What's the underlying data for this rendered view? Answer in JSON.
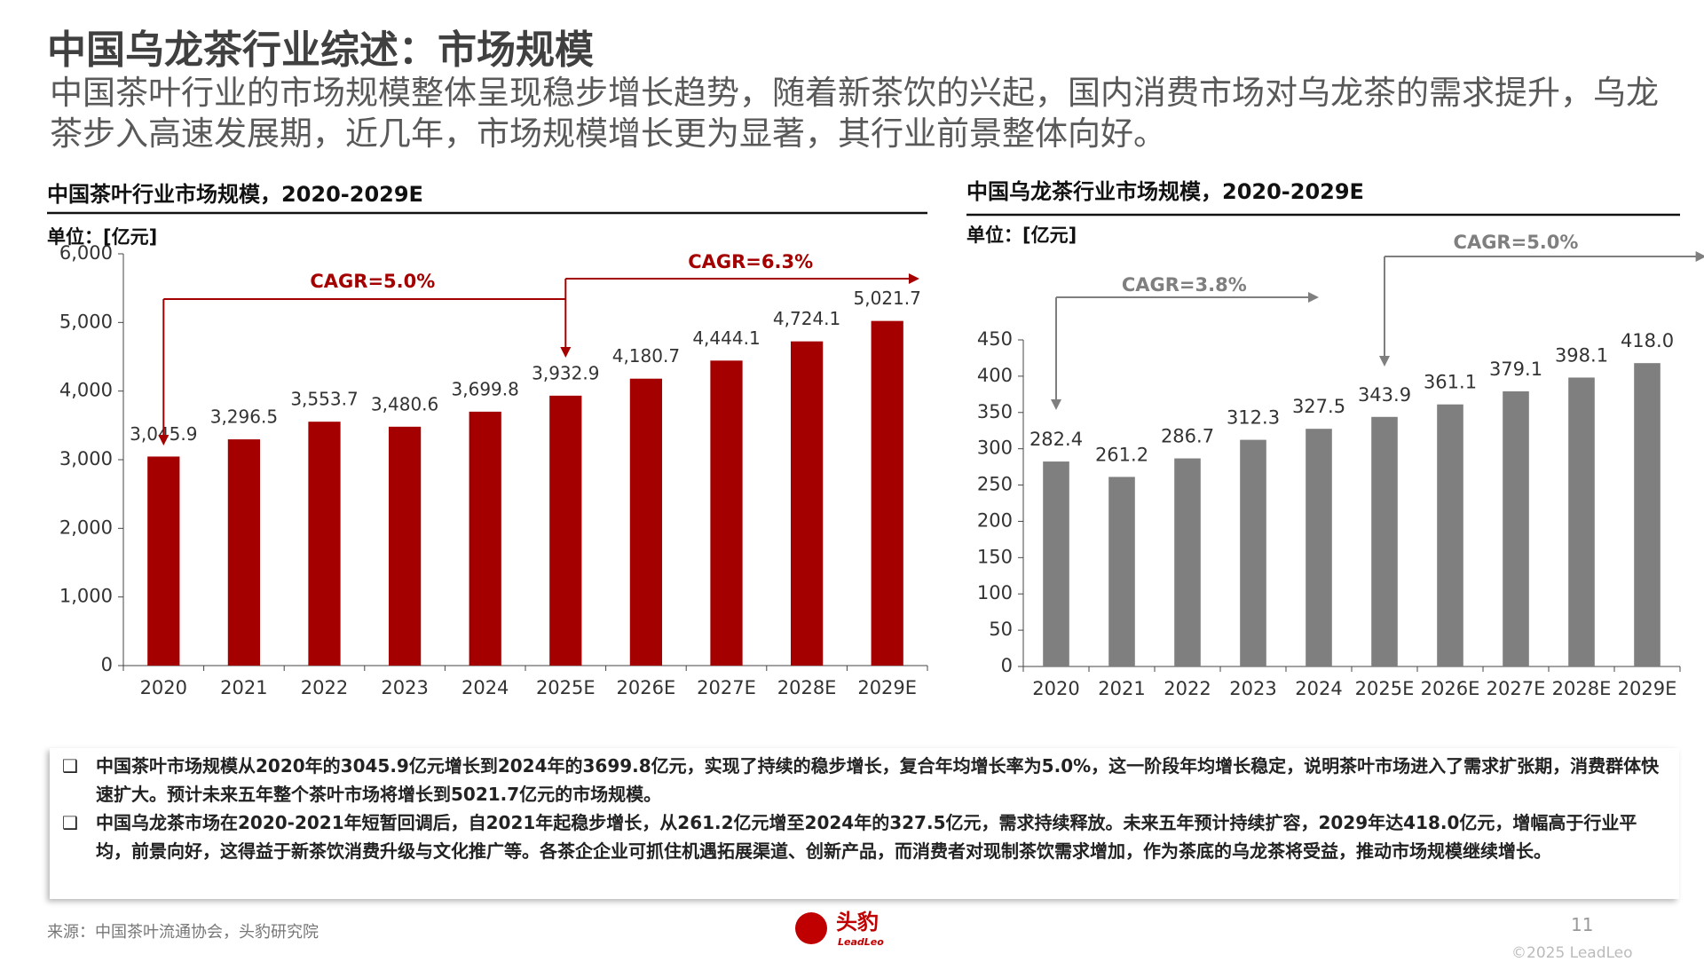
{
  "header": {
    "title": "中国乌龙茶行业综述：市场规模",
    "subtitle": "中国茶叶行业的市场规模整体呈现稳步增长趋势，随着新茶饮的兴起，国内消费市场对乌龙茶的需求提升，乌龙茶步入高速发展期，近几年，市场规模增长更为显著，其行业前景整体向好。"
  },
  "chart_data": [
    {
      "type": "bar",
      "title": "中国茶叶行业市场规模，2020-2029E",
      "unit": "单位：[亿元]",
      "categories": [
        "2020",
        "2021",
        "2022",
        "2023",
        "2024",
        "2025E",
        "2026E",
        "2027E",
        "2028E",
        "2029E"
      ],
      "values": [
        3045.9,
        3296.5,
        3553.7,
        3480.6,
        3699.8,
        3932.9,
        4180.7,
        4444.1,
        4724.1,
        5021.7
      ],
      "value_labels": [
        "3,045.9",
        "3,296.5",
        "3,553.7",
        "3,480.6",
        "3,699.8",
        "3,932.9",
        "4,180.7",
        "4,444.1",
        "4,724.1",
        "5,021.7"
      ],
      "color": "#a50000",
      "ylim": [
        0,
        6000
      ],
      "yticks": [
        0,
        {
          "value": 1000,
          "label": "1,000"
        },
        {
          "value": 2000,
          "label": "2,000"
        },
        {
          "value": 3000,
          "label": "3,000"
        },
        {
          "value": 4000,
          "label": "4,000"
        },
        {
          "value": 5000,
          "label": "5,000"
        },
        {
          "value": 6000,
          "label": "6,000"
        }
      ],
      "annotations": [
        "CAGR=5.0%",
        "CAGR=6.3%"
      ]
    },
    {
      "type": "bar",
      "title": "中国乌龙茶行业市场规模，2020-2029E",
      "unit": "单位：[亿元]",
      "categories": [
        "2020",
        "2021",
        "2022",
        "2023",
        "2024",
        "2025E",
        "2026E",
        "2027E",
        "2028E",
        "2029E"
      ],
      "values": [
        282.4,
        261.2,
        286.7,
        312.3,
        327.5,
        343.9,
        361.1,
        379.1,
        398.1,
        418.0
      ],
      "value_labels": [
        "282.4",
        "261.2",
        "286.7",
        "312.3",
        "327.5",
        "343.9",
        "361.1",
        "379.1",
        "398.1",
        "418.0"
      ],
      "color": "#7f7f7f",
      "ylim": [
        0,
        450
      ],
      "yticks": [
        0,
        50,
        100,
        150,
        200,
        250,
        300,
        350,
        400,
        450
      ],
      "annotations": [
        "CAGR=3.8%",
        "CAGR=5.0%"
      ]
    }
  ],
  "bullets": [
    "中国茶叶市场规模从2020年的3045.9亿元增长到2024年的3699.8亿元，实现了持续的稳步增长，复合年均增长率为5.0%，这一阶段年均增长稳定，说明茶叶市场进入了需求扩张期，消费群体快速扩大。预计未来五年整个茶叶市场将增长到5021.7亿元的市场规模。",
    "中国乌龙茶市场在2020-2021年短暂回调后，自2021年起稳步增长，从261.2亿元增至2024年的327.5亿元，需求持续释放。未来五年预计持续扩容，2029年达418.0亿元，增幅高于行业平均，前景向好，这得益于新茶饮消费升级与文化推广等。各茶企企业可抓住机遇拓展渠道、创新产品，而消费者对现制茶饮需求增加，作为茶底的乌龙茶将受益，推动市场规模继续增长。"
  ],
  "footer": {
    "source": "来源：中国茶叶流通协会，头豹研究院",
    "logo": "头豹",
    "logo_sub": "LeadLeo",
    "page": "11",
    "copyright": "©2025 LeadLeo"
  }
}
